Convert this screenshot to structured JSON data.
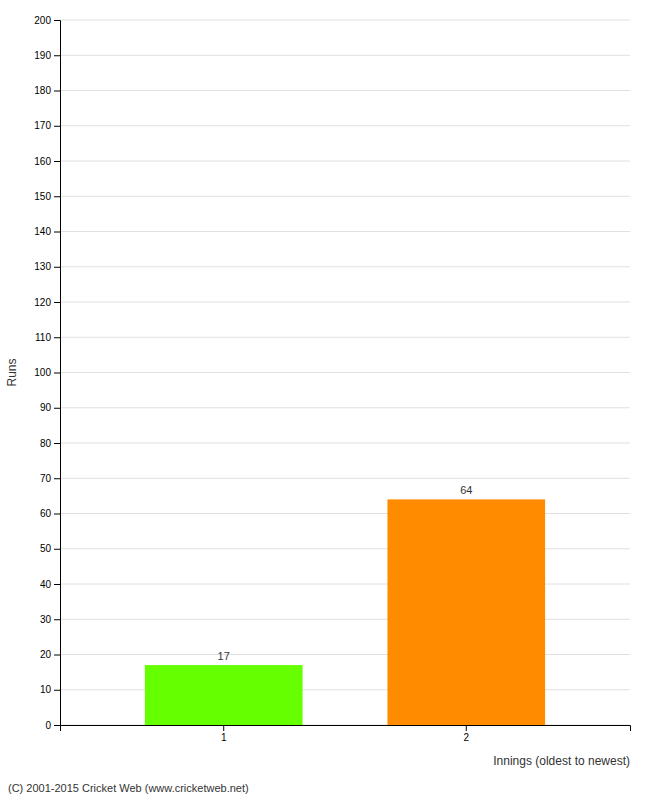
{
  "chart_data": {
    "type": "bar",
    "xlabel": "Innings (oldest to newest)",
    "ylabel": "Runs",
    "categories": [
      "1",
      "2"
    ],
    "values": [
      17,
      64
    ],
    "colors": [
      "#66ff00",
      "#ff8c00"
    ],
    "ylim": [
      0,
      200
    ],
    "yticks": [
      0,
      10,
      20,
      30,
      40,
      50,
      60,
      70,
      80,
      90,
      100,
      110,
      120,
      130,
      140,
      150,
      160,
      170,
      180,
      190,
      200
    ],
    "grid": true,
    "data_labels": true,
    "annotations": [
      "(C) 2001-2015 Cricket Web (www.cricketweb.net)"
    ]
  }
}
